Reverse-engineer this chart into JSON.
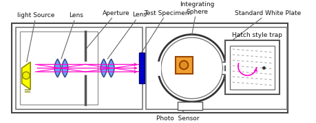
{
  "labels": {
    "light_source": "light Source",
    "lens1": "Lens",
    "aperture": "Aperture",
    "lens2": "Lens",
    "test_specimen": "Test Specimen",
    "integrating_sphere_line1": "Integrating",
    "integrating_sphere_line2": "Sphere",
    "standard_white_plate": "Standard White Plate",
    "hatch_style_trap": "Hatch style trap",
    "photo_sensor": "Photo  Sensor"
  },
  "arrow_color": "#ff00cc",
  "lens_color": "#5599ff",
  "source_yellow": "#ffff00",
  "source_outline": "#888800",
  "specimen_blue": "#0000cc",
  "specimen_orange": "#f0a030",
  "sphere_color": "#444444",
  "trap_line_color": "#888888",
  "label_line_color": "#666666",
  "box_outer_color": "#555555",
  "box_inner_color": "#888888"
}
